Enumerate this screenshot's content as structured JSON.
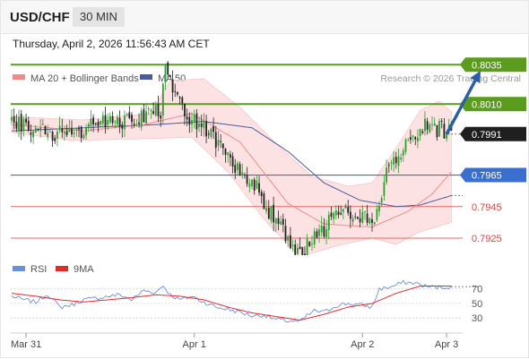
{
  "header": {
    "symbol": "USD/CHF",
    "interval": "30 MIN"
  },
  "datetime": "Thursday, April 2, 2026 11:56:43 AM CET",
  "copyright": "Research © 2026 Trading Central",
  "colors": {
    "resistance": "#5b9c1f",
    "support_blue": "#3a6fd0",
    "support_red": "#e46a6a",
    "current": "#1f1f1f",
    "bollinger_fill": "#fbd8d8",
    "ma20": "#f28a8a",
    "ma50": "#4a5a9a",
    "candle_up": "#2e9c2e",
    "candle_down": "#222222",
    "arrow": "#2d5fa8",
    "rsi": "#6b8fd9",
    "rsi_ma": "#e02b2b"
  },
  "chart_data": [
    {
      "type": "candlestick",
      "title": "USD/CHF 30 MIN",
      "legend": [
        {
          "name": "MA 20 + Bollinger Bands",
          "color": "#f28a8a"
        },
        {
          "name": "MA 50",
          "color": "#4a5a9a"
        }
      ],
      "x_ticks": [
        "Mar 31",
        "Apr 1",
        "Apr 2",
        "Apr 3"
      ],
      "x_tick_index": [
        6,
        76,
        146,
        181
      ],
      "n_bars": 184,
      "y_range": [
        0.79142,
        0.80414
      ],
      "levels": [
        {
          "value": 0.8035,
          "label": "0.8035",
          "kind": "resistance"
        },
        {
          "value": 0.801,
          "label": "0.8010",
          "kind": "resistance"
        },
        {
          "value": 0.7991,
          "label": "0.7991",
          "kind": "current"
        },
        {
          "value": 0.7965,
          "label": "0.7965",
          "kind": "support_blue"
        },
        {
          "value": 0.7945,
          "label": "0.7945",
          "kind": "support_red"
        },
        {
          "value": 0.7925,
          "label": "0.7925",
          "kind": "support_red"
        }
      ],
      "close_path": [
        [
          0,
          0.8
        ],
        [
          12,
          0.7994
        ],
        [
          22,
          0.799
        ],
        [
          35,
          0.7997
        ],
        [
          50,
          0.8
        ],
        [
          62,
          0.8005
        ],
        [
          64,
          0.803
        ],
        [
          67,
          0.802
        ],
        [
          72,
          0.8002
        ],
        [
          80,
          0.7997
        ],
        [
          90,
          0.7975
        ],
        [
          100,
          0.7962
        ],
        [
          108,
          0.794
        ],
        [
          116,
          0.7922
        ],
        [
          120,
          0.7915
        ],
        [
          128,
          0.7928
        ],
        [
          136,
          0.7942
        ],
        [
          144,
          0.794
        ],
        [
          150,
          0.7935
        ],
        [
          156,
          0.7965
        ],
        [
          160,
          0.7976
        ],
        [
          166,
          0.7988
        ],
        [
          172,
          0.7997
        ],
        [
          177,
          0.7994
        ],
        [
          183,
          0.7993
        ]
      ],
      "ma20_path": [
        [
          0,
          0.7997
        ],
        [
          30,
          0.7993
        ],
        [
          55,
          0.7997
        ],
        [
          75,
          0.8004
        ],
        [
          95,
          0.7986
        ],
        [
          115,
          0.7947
        ],
        [
          130,
          0.7934
        ],
        [
          150,
          0.7932
        ],
        [
          165,
          0.7942
        ],
        [
          175,
          0.7953
        ],
        [
          183,
          0.7967
        ]
      ],
      "bb_upper_path": [
        [
          0,
          0.8002
        ],
        [
          30,
          0.8
        ],
        [
          58,
          0.8004
        ],
        [
          66,
          0.8025
        ],
        [
          80,
          0.8026
        ],
        [
          95,
          0.8008
        ],
        [
          110,
          0.7985
        ],
        [
          125,
          0.7964
        ],
        [
          140,
          0.7958
        ],
        [
          150,
          0.796
        ],
        [
          160,
          0.7982
        ],
        [
          170,
          0.8006
        ],
        [
          178,
          0.8012
        ],
        [
          183,
          0.8005
        ]
      ],
      "bb_lower_path": [
        [
          0,
          0.7992
        ],
        [
          25,
          0.7987
        ],
        [
          55,
          0.7988
        ],
        [
          75,
          0.7989
        ],
        [
          90,
          0.7967
        ],
        [
          105,
          0.7937
        ],
        [
          120,
          0.7913
        ],
        [
          135,
          0.792
        ],
        [
          150,
          0.7925
        ],
        [
          160,
          0.7921
        ],
        [
          170,
          0.7929
        ],
        [
          183,
          0.7935
        ]
      ],
      "ma50_path": [
        [
          0,
          0.7993
        ],
        [
          30,
          0.7995
        ],
        [
          60,
          0.7997
        ],
        [
          80,
          0.7999
        ],
        [
          100,
          0.7995
        ],
        [
          115,
          0.798
        ],
        [
          130,
          0.796
        ],
        [
          145,
          0.7949
        ],
        [
          160,
          0.7945
        ],
        [
          170,
          0.7946
        ],
        [
          183,
          0.7952
        ]
      ],
      "ma50_projection": [
        [
          183,
          0.7952
        ],
        [
          194,
          0.7952
        ]
      ],
      "forecast_arrow": [
        [
          181,
          0.7991
        ],
        [
          194,
          0.8028
        ]
      ]
    },
    {
      "type": "line",
      "title": "RSI",
      "legend": [
        {
          "name": "RSI",
          "color": "#6b8fd9"
        },
        {
          "name": "9MA",
          "color": "#e02b2b"
        }
      ],
      "y_ticks": [
        70,
        50,
        30
      ],
      "y_range": [
        13,
        82
      ],
      "rsi_path": [
        [
          0,
          60
        ],
        [
          5,
          55
        ],
        [
          10,
          52
        ],
        [
          15,
          63
        ],
        [
          20,
          45
        ],
        [
          25,
          48
        ],
        [
          30,
          55
        ],
        [
          35,
          57
        ],
        [
          40,
          60
        ],
        [
          45,
          62
        ],
        [
          50,
          55
        ],
        [
          55,
          68
        ],
        [
          60,
          65
        ],
        [
          63,
          75
        ],
        [
          66,
          62
        ],
        [
          70,
          55
        ],
        [
          75,
          60
        ],
        [
          80,
          52
        ],
        [
          85,
          45
        ],
        [
          90,
          42
        ],
        [
          95,
          38
        ],
        [
          100,
          33
        ],
        [
          105,
          34
        ],
        [
          110,
          28
        ],
        [
          115,
          26
        ],
        [
          120,
          25
        ],
        [
          123,
          33
        ],
        [
          126,
          40
        ],
        [
          130,
          38
        ],
        [
          135,
          47
        ],
        [
          140,
          50
        ],
        [
          145,
          48
        ],
        [
          150,
          45
        ],
        [
          153,
          70
        ],
        [
          158,
          73
        ],
        [
          163,
          79
        ],
        [
          168,
          78
        ],
        [
          172,
          74
        ],
        [
          177,
          72
        ],
        [
          183,
          73
        ]
      ],
      "rsi_ma_path": [
        [
          0,
          64
        ],
        [
          10,
          60
        ],
        [
          20,
          55
        ],
        [
          30,
          52
        ],
        [
          40,
          55
        ],
        [
          50,
          58
        ],
        [
          60,
          62
        ],
        [
          70,
          60
        ],
        [
          80,
          55
        ],
        [
          90,
          45
        ],
        [
          100,
          37
        ],
        [
          110,
          32
        ],
        [
          120,
          27
        ],
        [
          130,
          35
        ],
        [
          140,
          45
        ],
        [
          150,
          50
        ],
        [
          160,
          64
        ],
        [
          170,
          74
        ],
        [
          183,
          74
        ]
      ],
      "rsi_projection": [
        [
          183,
          73
        ],
        [
          194,
          73
        ]
      ]
    }
  ]
}
